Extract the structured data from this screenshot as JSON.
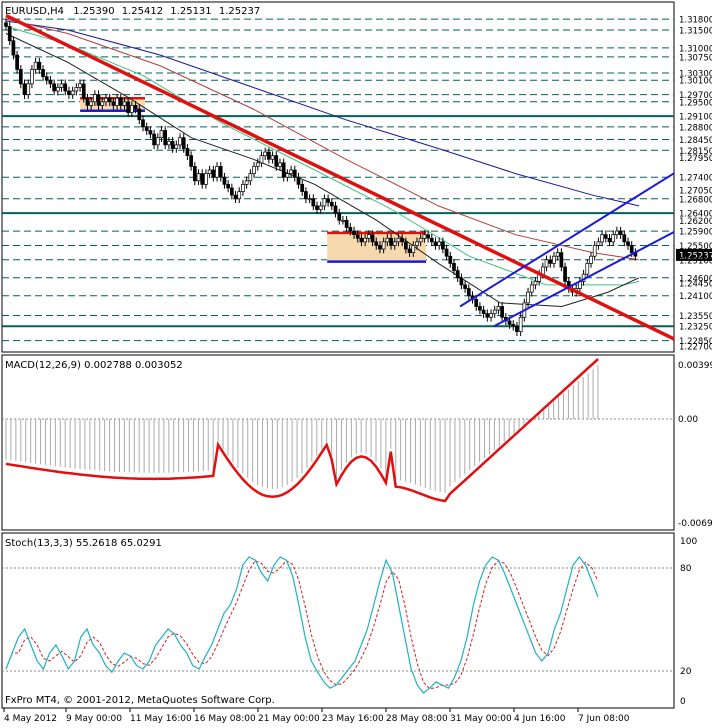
{
  "main_panel": {
    "header": {
      "symbol": "EURUSD,H4",
      "open": "1.25390",
      "high": "1.25412",
      "low": "1.25131",
      "close": "1.25237"
    },
    "price_labels": [
      "1.31800",
      "1.31500",
      "1.31000",
      "1.30750",
      "1.30300",
      "1.30100",
      "1.29700",
      "1.29500",
      "1.29100",
      "1.28800",
      "1.28450",
      "1.28150",
      "1.27950",
      "1.27400",
      "1.27050",
      "1.26800",
      "1.26400",
      "1.26200",
      "1.25900",
      "1.25500",
      "1.25237",
      "1.25100",
      "1.24600",
      "1.24450",
      "1.24100",
      "1.23550",
      "1.23250",
      "1.22850",
      "1.22700"
    ],
    "current_price_label": "1.25237",
    "horizontal_levels": [
      1.318,
      1.315,
      1.31,
      1.3075,
      1.303,
      1.301,
      1.297,
      1.295,
      1.291,
      1.288,
      1.2845,
      1.2815,
      1.274,
      1.268,
      1.264,
      1.259,
      1.255,
      1.251,
      1.246,
      1.241,
      1.2355,
      1.2325,
      1.2285
    ],
    "thick_levels": [
      1.291,
      1.264,
      1.2325
    ]
  },
  "macd_panel": {
    "label": "MACD(12,26,9) 0.002788 0.003052",
    "scale_labels": [
      "0.00399",
      "0.00",
      "-0.00697"
    ]
  },
  "stoch_panel": {
    "label": "Stoch(13,3,3) 55.2618 65.0291",
    "scale_labels": [
      "100",
      "80",
      "20",
      "0"
    ]
  },
  "copyright": "FxPro MT4, © 2001-2012, MetaQuotes Software Corp.",
  "time_labels": [
    "4 May 2012",
    "9 May 00:00",
    "11 May 16:00",
    "16 May 08:00",
    "21 May 00:00",
    "23 May 16:00",
    "28 May 08:00",
    "31 May 00:00",
    "4 Jun 16:00",
    "7 Jun 08:00"
  ],
  "colors": {
    "grid_dash": "#00625a",
    "thick_level": "#00625a",
    "trend_red": "#e01010",
    "channel_blue": "#1a1adc",
    "ma_blue": "#1a1a9a",
    "ma_red": "#b04040",
    "ma_green": "#40c080",
    "ma_black": "#202020",
    "zone_fill": "#f7d9ae",
    "macd_line": "#e01010",
    "stoch_main": "#20b0c0",
    "stoch_signal": "#d02020"
  },
  "chart_data": [
    {
      "type": "candlestick",
      "title": "EURUSD,H4",
      "ylim": [
        1.227,
        1.32
      ],
      "x_range_bars": [
        0,
        215
      ],
      "horizontal_levels": [
        1.318,
        1.315,
        1.31,
        1.3075,
        1.303,
        1.301,
        1.297,
        1.295,
        1.291,
        1.288,
        1.2845,
        1.2815,
        1.274,
        1.268,
        1.264,
        1.259,
        1.255,
        1.251,
        1.246,
        1.241,
        1.2355,
        1.2325,
        1.2285
      ],
      "resistance_zones": [
        {
          "from_bar": 24,
          "to_bar": 45,
          "top": 1.296,
          "bottom": 1.2925
        },
        {
          "from_bar": 104,
          "to_bar": 136,
          "top": 1.2585,
          "bottom": 1.2505
        }
      ],
      "trend_lines": [
        {
          "name": "",
          "bar1": 0,
          "price1": 1.319,
          "bar2": 215,
          "price2": 1.2295
        },
        {
          "name": "",
          "bar1": 147,
          "price1": 1.238,
          "bar2": 218,
          "price2": 1.276
        },
        {
          "name": "",
          "bar1": 158,
          "price1": 1.2325,
          "bar2": 218,
          "price2": 1.2595
        }
      ],
      "closes": [
        1.316,
        1.312,
        1.308,
        1.304,
        1.3,
        1.297,
        1.3,
        1.304,
        1.306,
        1.304,
        1.302,
        1.301,
        1.3,
        1.298,
        1.299,
        1.3,
        1.298,
        1.297,
        1.298,
        1.299,
        1.3,
        1.296,
        1.294,
        1.295,
        1.297,
        1.294,
        1.295,
        1.296,
        1.295,
        1.294,
        1.296,
        1.294,
        1.295,
        1.292,
        1.294,
        1.293,
        1.29,
        1.288,
        1.287,
        1.286,
        1.283,
        1.285,
        1.287,
        1.283,
        1.284,
        1.282,
        1.283,
        1.285,
        1.282,
        1.28,
        1.277,
        1.273,
        1.275,
        1.272,
        1.275,
        1.276,
        1.274,
        1.277,
        1.274,
        1.272,
        1.271,
        1.269,
        1.268,
        1.27,
        1.272,
        1.273,
        1.275,
        1.277,
        1.278,
        1.28,
        1.281,
        1.279,
        1.28,
        1.277,
        1.278,
        1.274,
        1.275,
        1.276,
        1.274,
        1.272,
        1.27,
        1.268,
        1.268,
        1.266,
        1.265,
        1.266,
        1.268,
        1.267,
        1.266,
        1.264,
        1.262,
        1.262,
        1.26,
        1.259,
        1.258,
        1.257,
        1.256,
        1.257,
        1.258,
        1.256,
        1.255,
        1.254,
        1.256,
        1.257,
        1.255,
        1.256,
        1.257,
        1.256,
        1.254,
        1.253,
        1.255,
        1.256,
        1.257,
        1.258,
        1.257,
        1.256,
        1.255,
        1.256,
        1.254,
        1.252,
        1.25,
        1.248,
        1.246,
        1.244,
        1.243,
        1.241,
        1.24,
        1.238,
        1.237,
        1.236,
        1.235,
        1.236,
        1.237,
        1.238,
        1.235,
        1.234,
        1.233,
        1.2325,
        1.231,
        1.235,
        1.239,
        1.242,
        1.244,
        1.245,
        1.247,
        1.249,
        1.251,
        1.25,
        1.252,
        1.253,
        1.249,
        1.245,
        1.243,
        1.242,
        1.243,
        1.245,
        1.247,
        1.25,
        1.252,
        1.255,
        1.256,
        1.258,
        1.257,
        1.256,
        1.258,
        1.259,
        1.258,
        1.256,
        1.255,
        1.253,
        1.252
      ]
    },
    {
      "type": "line",
      "title": "MACD(12,26,9) 0.002788 0.003052",
      "ylim": [
        -0.00697,
        0.00399
      ],
      "histogram": "gray bars",
      "signal_line_color": "#e01010"
    },
    {
      "type": "line",
      "title": "Stoch(13,3,3) 55.2618 65.0291",
      "ylim": [
        0,
        100
      ],
      "levels": [
        20,
        80
      ],
      "main_values": [
        20,
        30,
        40,
        45,
        35,
        25,
        20,
        30,
        35,
        28,
        20,
        25,
        40,
        45,
        35,
        30,
        22,
        18,
        25,
        30,
        28,
        22,
        20,
        25,
        35,
        40,
        45,
        42,
        35,
        30,
        22,
        20,
        28,
        35,
        45,
        55,
        60,
        70,
        85,
        90,
        88,
        80,
        75,
        85,
        90,
        88,
        78,
        60,
        40,
        25,
        18,
        12,
        8,
        10,
        15,
        20,
        25,
        35,
        45,
        60,
        75,
        88,
        80,
        60,
        40,
        20,
        10,
        5,
        8,
        12,
        10,
        8,
        15,
        25,
        40,
        60,
        75,
        85,
        90,
        88,
        80,
        70,
        60,
        50,
        40,
        30,
        25,
        30,
        45,
        55,
        70,
        85,
        90,
        85,
        75,
        65
      ]
    }
  ]
}
